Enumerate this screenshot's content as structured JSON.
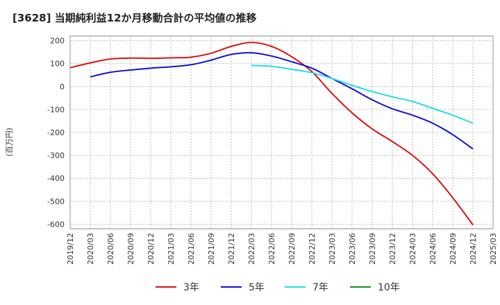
{
  "chart_data": {
    "type": "line",
    "title": "[3628]  当期純利益12か月移動合計の平均値の推移",
    "ylabel": "(百万円)",
    "xlabel": "",
    "ylim": [
      -620,
      220
    ],
    "yticks": [
      200,
      100,
      0,
      -100,
      -200,
      -300,
      -400,
      -500,
      -600
    ],
    "xticks": [
      "2019/12",
      "2020/03",
      "2020/06",
      "2020/09",
      "2020/12",
      "2021/03",
      "2021/06",
      "2021/09",
      "2021/12",
      "2022/03",
      "2022/06",
      "2022/09",
      "2022/12",
      "2023/03",
      "2023/06",
      "2023/09",
      "2023/12",
      "2024/03",
      "2024/06",
      "2024/09",
      "2024/12",
      "2025/03"
    ],
    "grid": true,
    "legend_position": "bottom",
    "series": [
      {
        "name": "3年",
        "color": "#dd1111",
        "points": [
          [
            "2019/12",
            82
          ],
          [
            "2020/03",
            103
          ],
          [
            "2020/06",
            120
          ],
          [
            "2020/09",
            124
          ],
          [
            "2020/12",
            123
          ],
          [
            "2021/03",
            125
          ],
          [
            "2021/06",
            128
          ],
          [
            "2021/09",
            145
          ],
          [
            "2021/12",
            175
          ],
          [
            "2022/03",
            192
          ],
          [
            "2022/06",
            175
          ],
          [
            "2022/09",
            130
          ],
          [
            "2022/12",
            65
          ],
          [
            "2023/03",
            -30
          ],
          [
            "2023/06",
            -115
          ],
          [
            "2023/09",
            -185
          ],
          [
            "2023/12",
            -240
          ],
          [
            "2024/03",
            -300
          ],
          [
            "2024/06",
            -380
          ],
          [
            "2024/09",
            -485
          ],
          [
            "2024/12",
            -603
          ]
        ]
      },
      {
        "name": "5年",
        "color": "#1111cc",
        "points": [
          [
            "2020/03",
            42
          ],
          [
            "2020/06",
            62
          ],
          [
            "2020/09",
            72
          ],
          [
            "2020/12",
            80
          ],
          [
            "2021/03",
            86
          ],
          [
            "2021/06",
            95
          ],
          [
            "2021/09",
            115
          ],
          [
            "2021/12",
            140
          ],
          [
            "2022/03",
            147
          ],
          [
            "2022/06",
            133
          ],
          [
            "2022/09",
            108
          ],
          [
            "2022/12",
            80
          ],
          [
            "2023/03",
            35
          ],
          [
            "2023/06",
            -10
          ],
          [
            "2023/09",
            -58
          ],
          [
            "2023/12",
            -97
          ],
          [
            "2024/03",
            -125
          ],
          [
            "2024/06",
            -160
          ],
          [
            "2024/09",
            -210
          ],
          [
            "2024/12",
            -272
          ]
        ]
      },
      {
        "name": "7年",
        "color": "#22dddd",
        "points": [
          [
            "2022/03",
            92
          ],
          [
            "2022/06",
            88
          ],
          [
            "2022/09",
            75
          ],
          [
            "2022/12",
            60
          ],
          [
            "2023/03",
            35
          ],
          [
            "2023/06",
            5
          ],
          [
            "2023/09",
            -22
          ],
          [
            "2023/12",
            -45
          ],
          [
            "2024/03",
            -65
          ],
          [
            "2024/06",
            -95
          ],
          [
            "2024/09",
            -125
          ],
          [
            "2024/12",
            -160
          ]
        ]
      },
      {
        "name": "10年",
        "color": "#228822",
        "points": []
      }
    ]
  }
}
